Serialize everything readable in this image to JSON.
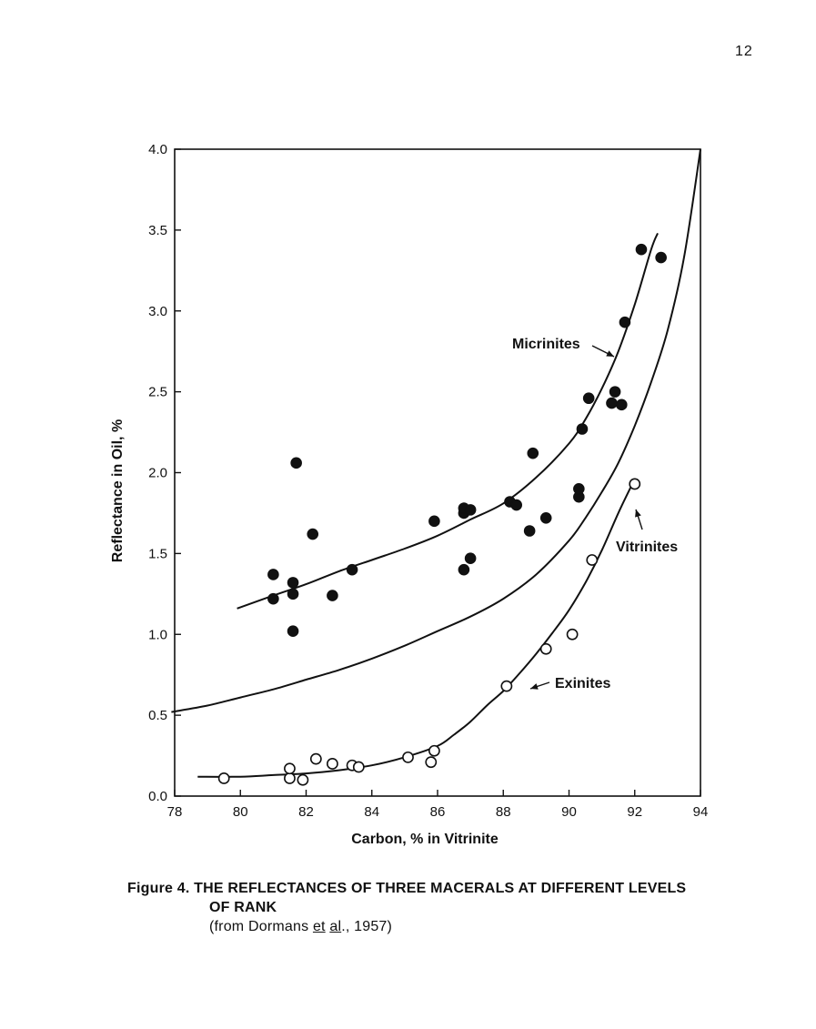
{
  "page": {
    "number": "12"
  },
  "chart_data": {
    "type": "scatter",
    "title": "",
    "xlabel": "Carbon, % in Vitrinite",
    "ylabel": "Reflectance in Oil, %",
    "xlim": [
      78,
      94
    ],
    "ylim": [
      0.0,
      4.0
    ],
    "x_ticks": [
      78,
      80,
      82,
      84,
      86,
      88,
      90,
      92,
      94
    ],
    "y_ticks": [
      0.0,
      0.5,
      1.0,
      1.5,
      2.0,
      2.5,
      3.0,
      3.5,
      4.0
    ],
    "x_tick_labels": [
      "78",
      "80",
      "82",
      "84",
      "86",
      "88",
      "90",
      "92",
      "94"
    ],
    "y_tick_labels": [
      "0.0",
      "0.5",
      "1.0",
      "1.5",
      "2.0",
      "2.5",
      "3.0",
      "3.5",
      "4.0"
    ],
    "grid": false,
    "series": [
      {
        "name": "Micrinites",
        "marker": "filled-circle",
        "points": [
          [
            81.0,
            1.22
          ],
          [
            81.0,
            1.37
          ],
          [
            81.6,
            1.02
          ],
          [
            81.6,
            1.25
          ],
          [
            81.6,
            1.32
          ],
          [
            81.7,
            2.06
          ],
          [
            82.2,
            1.62
          ],
          [
            82.8,
            1.24
          ],
          [
            83.4,
            1.4
          ],
          [
            85.9,
            1.7
          ],
          [
            86.8,
            1.4
          ],
          [
            86.8,
            1.75
          ],
          [
            86.8,
            1.78
          ],
          [
            87.0,
            1.47
          ],
          [
            87.0,
            1.77
          ],
          [
            88.2,
            1.82
          ],
          [
            88.4,
            1.8
          ],
          [
            88.8,
            1.64
          ],
          [
            88.9,
            2.12
          ],
          [
            89.3,
            1.72
          ],
          [
            90.3,
            1.85
          ],
          [
            90.3,
            1.9
          ],
          [
            90.4,
            2.27
          ],
          [
            90.6,
            2.46
          ],
          [
            91.3,
            2.43
          ],
          [
            91.4,
            2.5
          ],
          [
            91.6,
            2.42
          ],
          [
            91.7,
            2.93
          ],
          [
            92.2,
            3.38
          ],
          [
            92.8,
            3.33
          ]
        ],
        "curve": [
          [
            79.9,
            1.16
          ],
          [
            81.0,
            1.24
          ],
          [
            82.0,
            1.31
          ],
          [
            83.0,
            1.39
          ],
          [
            84.0,
            1.46
          ],
          [
            85.0,
            1.53
          ],
          [
            86.0,
            1.61
          ],
          [
            87.0,
            1.71
          ],
          [
            88.0,
            1.81
          ],
          [
            89.0,
            1.97
          ],
          [
            90.0,
            2.18
          ],
          [
            90.5,
            2.33
          ],
          [
            91.0,
            2.52
          ],
          [
            91.5,
            2.75
          ],
          [
            92.0,
            3.04
          ],
          [
            92.5,
            3.38
          ],
          [
            92.7,
            3.48
          ]
        ]
      },
      {
        "name": "Vitrinites",
        "marker": "none",
        "points": [],
        "curve": [
          [
            77.9,
            0.52
          ],
          [
            79.0,
            0.56
          ],
          [
            80.0,
            0.61
          ],
          [
            81.0,
            0.66
          ],
          [
            82.0,
            0.72
          ],
          [
            83.0,
            0.78
          ],
          [
            84.0,
            0.85
          ],
          [
            85.0,
            0.93
          ],
          [
            86.0,
            1.02
          ],
          [
            87.0,
            1.11
          ],
          [
            88.0,
            1.22
          ],
          [
            89.0,
            1.37
          ],
          [
            90.0,
            1.58
          ],
          [
            90.5,
            1.72
          ],
          [
            91.0,
            1.88
          ],
          [
            91.5,
            2.06
          ],
          [
            92.0,
            2.29
          ],
          [
            92.5,
            2.56
          ],
          [
            93.0,
            2.88
          ],
          [
            93.5,
            3.33
          ],
          [
            94.0,
            4.0
          ]
        ]
      },
      {
        "name": "Exinites",
        "marker": "open-circle",
        "points": [
          [
            79.5,
            0.11
          ],
          [
            81.5,
            0.11
          ],
          [
            81.5,
            0.17
          ],
          [
            81.9,
            0.1
          ],
          [
            82.3,
            0.23
          ],
          [
            82.8,
            0.2
          ],
          [
            83.4,
            0.19
          ],
          [
            83.6,
            0.18
          ],
          [
            85.1,
            0.24
          ],
          [
            85.8,
            0.21
          ],
          [
            85.9,
            0.28
          ],
          [
            88.1,
            0.68
          ],
          [
            89.3,
            0.91
          ],
          [
            90.1,
            1.0
          ],
          [
            90.7,
            1.46
          ],
          [
            92.0,
            1.93
          ]
        ],
        "curve": [
          [
            78.7,
            0.12
          ],
          [
            80.0,
            0.12
          ],
          [
            81.0,
            0.13
          ],
          [
            82.0,
            0.14
          ],
          [
            83.0,
            0.16
          ],
          [
            84.0,
            0.19
          ],
          [
            85.0,
            0.24
          ],
          [
            86.0,
            0.31
          ],
          [
            86.5,
            0.38
          ],
          [
            87.0,
            0.46
          ],
          [
            87.5,
            0.56
          ],
          [
            88.0,
            0.65
          ],
          [
            88.5,
            0.76
          ],
          [
            89.0,
            0.88
          ],
          [
            89.5,
            1.01
          ],
          [
            90.0,
            1.15
          ],
          [
            90.5,
            1.32
          ],
          [
            91.0,
            1.52
          ],
          [
            91.5,
            1.75
          ],
          [
            92.0,
            1.96
          ]
        ]
      }
    ],
    "annotations": [
      {
        "text": "Micrinites",
        "series": "Micrinites"
      },
      {
        "text": "Vitrinites",
        "series": "Vitrinites"
      },
      {
        "text": "Exinites",
        "series": "Exinites"
      }
    ]
  },
  "caption": {
    "line1": "Figure 4.  THE REFLECTANCES OF THREE MACERALS AT DIFFERENT LEVELS",
    "line2": "OF RANK",
    "source_open": "(from Dormans ",
    "source_et": "et",
    "source_space": " ",
    "source_al": "al",
    "source_close": "., 1957)"
  }
}
